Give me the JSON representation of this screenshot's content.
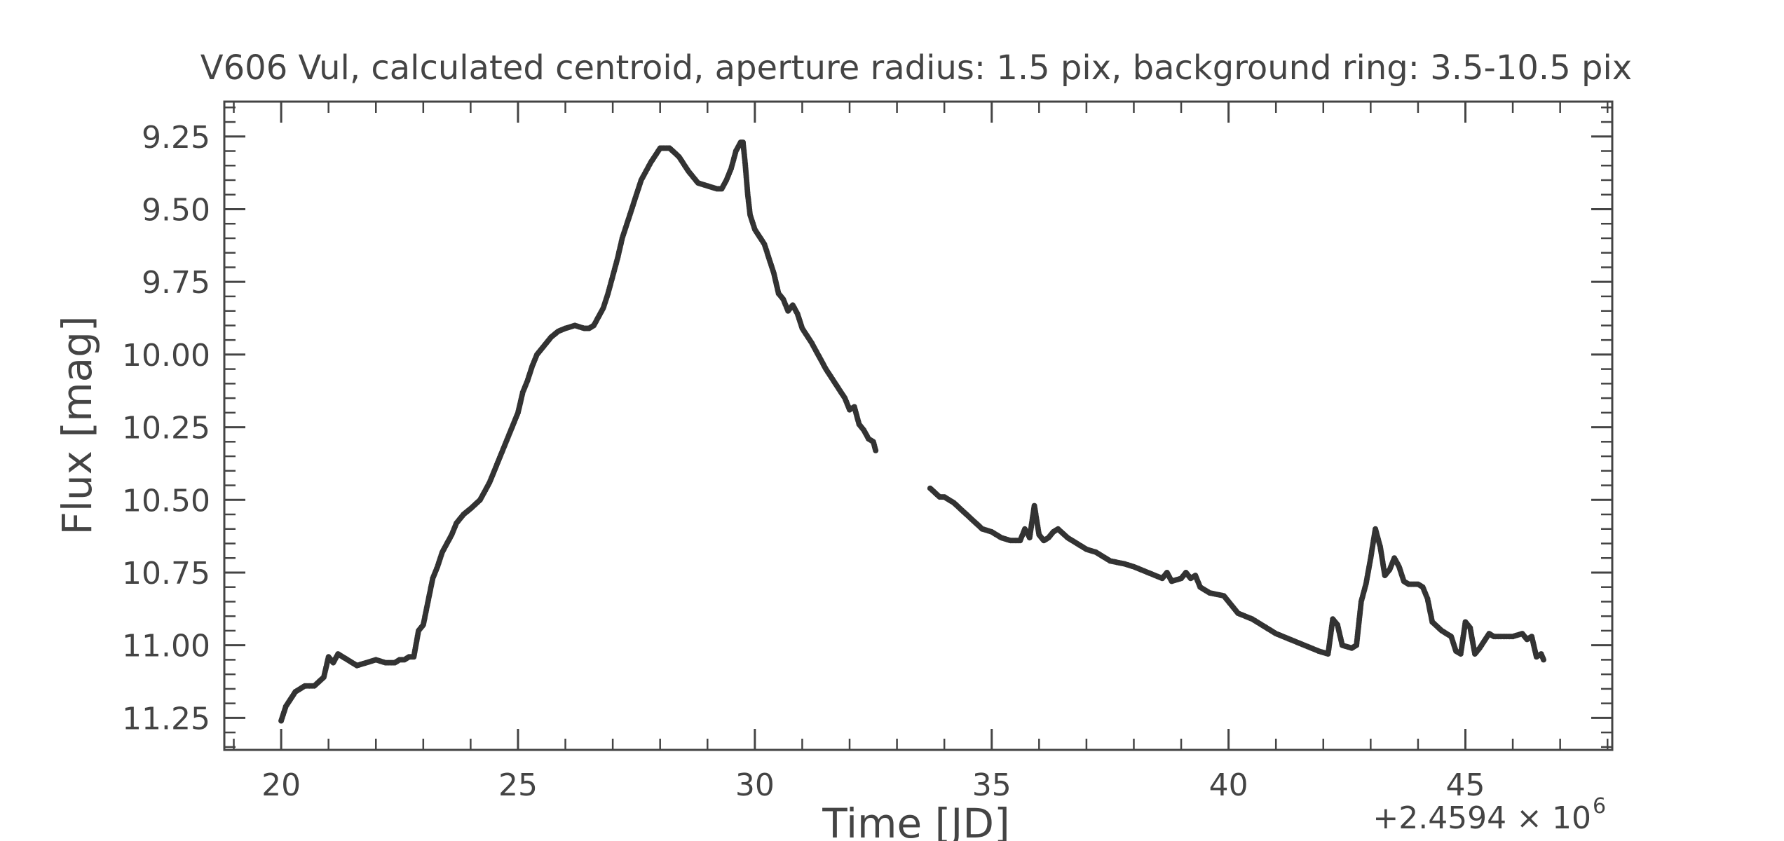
{
  "chart_data": {
    "type": "scatter",
    "title": "V606 Vul, calculated centroid, aperture radius: 1.5 pix, background ring: 3.5-10.5 pix",
    "xlabel": "Time [JD]",
    "ylabel": "Flux [mag]",
    "x_offset_label": "+2.4594 × 10",
    "x_offset_exponent": "6",
    "xlim": [
      18.8,
      48.1
    ],
    "ylim": [
      11.36,
      9.13
    ],
    "y_inverted": true,
    "x_ticks": [
      20,
      25,
      30,
      35,
      40,
      45
    ],
    "x_tick_labels": [
      "20",
      "25",
      "30",
      "35",
      "40",
      "45"
    ],
    "y_ticks": [
      9.25,
      9.5,
      9.75,
      10.0,
      10.25,
      10.5,
      10.75,
      11.0,
      11.25
    ],
    "y_tick_labels": [
      "9.25",
      "9.50",
      "9.75",
      "10.00",
      "10.25",
      "10.50",
      "10.75",
      "11.00",
      "11.25"
    ],
    "grid": false,
    "marker_color": "#333333",
    "series": [
      {
        "segments": [
          [
            [
              20.0,
              11.26
            ],
            [
              20.1,
              11.21
            ],
            [
              20.3,
              11.16
            ],
            [
              20.5,
              11.14
            ],
            [
              20.7,
              11.14
            ],
            [
              20.9,
              11.11
            ],
            [
              21.0,
              11.04
            ],
            [
              21.1,
              11.06
            ],
            [
              21.2,
              11.03
            ],
            [
              21.4,
              11.05
            ],
            [
              21.6,
              11.07
            ],
            [
              21.8,
              11.06
            ],
            [
              22.0,
              11.05
            ],
            [
              22.2,
              11.06
            ],
            [
              22.4,
              11.06
            ],
            [
              22.5,
              11.05
            ],
            [
              22.6,
              11.05
            ],
            [
              22.7,
              11.04
            ],
            [
              22.8,
              11.04
            ],
            [
              22.9,
              10.95
            ],
            [
              23.0,
              10.93
            ],
            [
              23.1,
              10.85
            ],
            [
              23.2,
              10.77
            ],
            [
              23.3,
              10.73
            ],
            [
              23.4,
              10.68
            ],
            [
              23.5,
              10.65
            ],
            [
              23.6,
              10.62
            ],
            [
              23.7,
              10.58
            ],
            [
              23.85,
              10.55
            ],
            [
              24.0,
              10.53
            ],
            [
              24.2,
              10.5
            ],
            [
              24.4,
              10.44
            ],
            [
              24.6,
              10.36
            ],
            [
              24.8,
              10.28
            ],
            [
              25.0,
              10.2
            ],
            [
              25.1,
              10.13
            ],
            [
              25.2,
              10.09
            ],
            [
              25.3,
              10.04
            ],
            [
              25.4,
              10.0
            ],
            [
              25.5,
              9.98
            ],
            [
              25.6,
              9.96
            ],
            [
              25.7,
              9.94
            ],
            [
              25.85,
              9.92
            ],
            [
              26.0,
              9.91
            ],
            [
              26.2,
              9.9
            ],
            [
              26.4,
              9.91
            ],
            [
              26.5,
              9.91
            ],
            [
              26.6,
              9.9
            ],
            [
              26.7,
              9.87
            ],
            [
              26.8,
              9.84
            ],
            [
              26.9,
              9.79
            ],
            [
              27.0,
              9.73
            ],
            [
              27.1,
              9.67
            ],
            [
              27.2,
              9.6
            ],
            [
              27.4,
              9.5
            ],
            [
              27.6,
              9.4
            ],
            [
              27.8,
              9.34
            ],
            [
              28.0,
              9.29
            ],
            [
              28.2,
              9.29
            ],
            [
              28.4,
              9.32
            ],
            [
              28.6,
              9.37
            ],
            [
              28.8,
              9.41
            ],
            [
              29.0,
              9.42
            ],
            [
              29.2,
              9.43
            ],
            [
              29.3,
              9.43
            ],
            [
              29.4,
              9.4
            ],
            [
              29.5,
              9.36
            ],
            [
              29.6,
              9.3
            ],
            [
              29.7,
              9.27
            ],
            [
              29.75,
              9.27
            ],
            [
              29.8,
              9.35
            ],
            [
              29.85,
              9.45
            ],
            [
              29.9,
              9.52
            ],
            [
              30.0,
              9.57
            ],
            [
              30.2,
              9.62
            ],
            [
              30.4,
              9.72
            ],
            [
              30.5,
              9.79
            ],
            [
              30.6,
              9.81
            ],
            [
              30.7,
              9.85
            ],
            [
              30.8,
              9.83
            ],
            [
              30.9,
              9.86
            ],
            [
              31.0,
              9.91
            ],
            [
              31.2,
              9.96
            ],
            [
              31.5,
              10.05
            ],
            [
              31.7,
              10.1
            ],
            [
              31.9,
              10.15
            ],
            [
              32.0,
              10.19
            ],
            [
              32.1,
              10.18
            ],
            [
              32.2,
              10.24
            ],
            [
              32.3,
              10.26
            ],
            [
              32.4,
              10.29
            ],
            [
              32.5,
              10.3
            ],
            [
              32.55,
              10.33
            ]
          ],
          [
            [
              33.7,
              10.46
            ],
            [
              33.9,
              10.49
            ],
            [
              34.0,
              10.49
            ],
            [
              34.2,
              10.51
            ],
            [
              34.4,
              10.54
            ],
            [
              34.6,
              10.57
            ],
            [
              34.8,
              10.6
            ],
            [
              35.0,
              10.61
            ],
            [
              35.2,
              10.63
            ],
            [
              35.4,
              10.64
            ],
            [
              35.6,
              10.64
            ],
            [
              35.7,
              10.6
            ],
            [
              35.8,
              10.63
            ],
            [
              35.9,
              10.52
            ],
            [
              36.0,
              10.62
            ],
            [
              36.1,
              10.64
            ],
            [
              36.2,
              10.63
            ],
            [
              36.3,
              10.61
            ],
            [
              36.4,
              10.6
            ],
            [
              36.6,
              10.63
            ],
            [
              36.8,
              10.65
            ],
            [
              37.0,
              10.67
            ],
            [
              37.2,
              10.68
            ],
            [
              37.5,
              10.71
            ],
            [
              37.8,
              10.72
            ],
            [
              38.0,
              10.73
            ],
            [
              38.3,
              10.75
            ],
            [
              38.6,
              10.77
            ],
            [
              38.7,
              10.75
            ],
            [
              38.8,
              10.78
            ],
            [
              39.0,
              10.77
            ],
            [
              39.1,
              10.75
            ],
            [
              39.2,
              10.77
            ],
            [
              39.3,
              10.76
            ],
            [
              39.4,
              10.8
            ],
            [
              39.6,
              10.82
            ],
            [
              39.9,
              10.83
            ],
            [
              40.1,
              10.87
            ],
            [
              40.2,
              10.89
            ],
            [
              40.5,
              10.91
            ],
            [
              40.8,
              10.94
            ],
            [
              41.0,
              10.96
            ],
            [
              41.3,
              10.98
            ],
            [
              41.6,
              11.0
            ],
            [
              41.9,
              11.02
            ],
            [
              42.1,
              11.03
            ],
            [
              42.2,
              10.91
            ],
            [
              42.3,
              10.93
            ],
            [
              42.4,
              11.0
            ],
            [
              42.6,
              11.01
            ],
            [
              42.7,
              11.0
            ],
            [
              42.8,
              10.85
            ],
            [
              42.9,
              10.79
            ],
            [
              43.0,
              10.7
            ],
            [
              43.1,
              10.6
            ],
            [
              43.2,
              10.66
            ],
            [
              43.3,
              10.76
            ],
            [
              43.4,
              10.74
            ],
            [
              43.5,
              10.7
            ],
            [
              43.6,
              10.73
            ],
            [
              43.7,
              10.78
            ],
            [
              43.8,
              10.79
            ],
            [
              44.0,
              10.79
            ],
            [
              44.1,
              10.8
            ],
            [
              44.2,
              10.84
            ],
            [
              44.3,
              10.92
            ],
            [
              44.5,
              10.95
            ],
            [
              44.7,
              10.97
            ],
            [
              44.8,
              11.02
            ],
            [
              44.9,
              11.03
            ],
            [
              45.0,
              10.92
            ],
            [
              45.1,
              10.94
            ],
            [
              45.2,
              11.03
            ],
            [
              45.3,
              11.01
            ],
            [
              45.5,
              10.96
            ],
            [
              45.6,
              10.97
            ],
            [
              45.8,
              10.97
            ],
            [
              46.0,
              10.97
            ],
            [
              46.2,
              10.96
            ],
            [
              46.3,
              10.98
            ],
            [
              46.4,
              10.97
            ],
            [
              46.5,
              11.04
            ],
            [
              46.6,
              11.03
            ],
            [
              46.65,
              11.05
            ]
          ]
        ]
      }
    ]
  }
}
